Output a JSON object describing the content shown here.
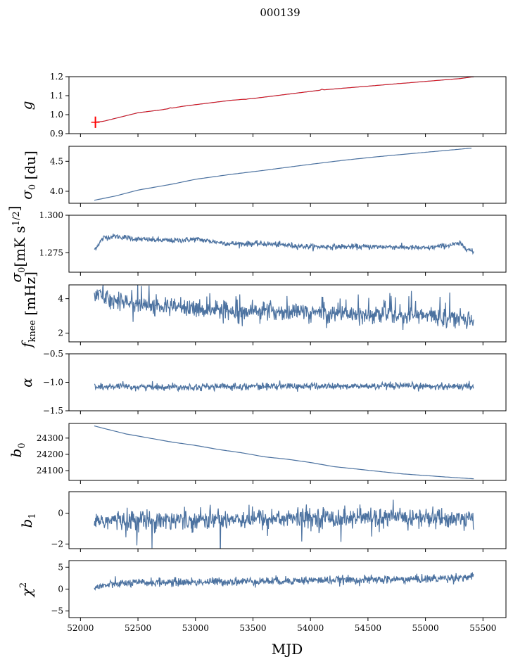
{
  "figure": {
    "title": "000139",
    "xlabel": "MJD"
  },
  "chart_data": {
    "type": "line",
    "title": "000139",
    "x_range": [
      51900,
      55700
    ],
    "shared_x_ticks": [
      "52000",
      "52500",
      "53000",
      "53500",
      "54000",
      "54500",
      "55000",
      "55500"
    ],
    "x_ticks": [
      52000,
      52500,
      53000,
      53500,
      54000,
      54500,
      55000,
      55500
    ],
    "line_color": "#4c72a0",
    "highlight_color": "#ff0000",
    "panels": [
      {
        "id": "g",
        "ylabel": "g",
        "ylim": [
          0.9,
          1.2
        ],
        "yticks": [
          0.9,
          1.0,
          1.1,
          1.2
        ],
        "ytick_labels": [
          "0.9",
          "1.0",
          "1.1",
          "1.2"
        ],
        "series": [
          {
            "x": [
              52120,
              52200,
              52300,
              52400,
              52500,
              52700,
              52900,
              53100,
              53300,
              53500,
              53700,
              53900,
              54100,
              54300,
              54500,
              54700,
              54900,
              55100,
              55300,
              55420
            ],
            "y": [
              0.96,
              0.965,
              0.98,
              0.995,
              1.01,
              1.025,
              1.045,
              1.06,
              1.075,
              1.085,
              1.1,
              1.115,
              1.13,
              1.14,
              1.15,
              1.16,
              1.17,
              1.18,
              1.19,
              1.2
            ]
          }
        ],
        "overlay_red": true
      },
      {
        "id": "sigma0_du",
        "ylabel": "σ0 [du]",
        "ylim": [
          3.8,
          4.75
        ],
        "yticks": [
          4.0,
          4.5
        ],
        "ytick_labels": [
          "4.0",
          "4.5"
        ],
        "series": [
          {
            "x": [
              52120,
              52300,
              52500,
              52800,
              53000,
              53300,
              53600,
              54000,
              54300,
              54600,
              55000,
              55400
            ],
            "y": [
              3.85,
              3.92,
              4.02,
              4.12,
              4.2,
              4.28,
              4.35,
              4.45,
              4.52,
              4.58,
              4.65,
              4.72
            ]
          }
        ]
      },
      {
        "id": "sigma0_mk",
        "ylabel": "σ0[mK s1/2]",
        "ylim": [
          1.262,
          1.3
        ],
        "yticks": [
          1.275,
          1.3
        ],
        "ytick_labels": [
          "1.275",
          "1.300"
        ],
        "series": [
          {
            "x": [
              52120,
              52200,
              52300,
              52500,
              52800,
              53000,
              53300,
              53600,
              54000,
              54300,
              54700,
              55000,
              55300,
              55420
            ],
            "y": [
              1.277,
              1.285,
              1.286,
              1.284,
              1.283,
              1.284,
              1.281,
              1.281,
              1.279,
              1.279,
              1.279,
              1.278,
              1.281,
              1.275
            ]
          }
        ],
        "noise": 0.0015
      },
      {
        "id": "fknee",
        "ylabel": "fknee [mHz]",
        "ylim": [
          1.5,
          4.8
        ],
        "yticks": [
          2,
          4
        ],
        "ytick_labels": [
          "2",
          "4"
        ],
        "series": [
          {
            "x": [
              52120,
              52300,
              52600,
              53000,
              53500,
              54000,
              54500,
              55000,
              55420
            ],
            "y": [
              4.3,
              3.9,
              3.6,
              3.4,
              3.3,
              3.2,
              3.1,
              3.0,
              2.8
            ]
          }
        ],
        "noise": 0.45
      },
      {
        "id": "alpha",
        "ylabel": "α",
        "ylim": [
          -1.5,
          -0.5
        ],
        "yticks": [
          -1.5,
          -1.0,
          -0.5
        ],
        "ytick_labels": [
          "−1.5",
          "−1.0",
          "−0.5"
        ],
        "series": [
          {
            "x": [
              52120,
              52500,
              53000,
              53500,
              54000,
              54500,
              55000,
              55420
            ],
            "y": [
              -1.08,
              -1.08,
              -1.08,
              -1.07,
              -1.07,
              -1.07,
              -1.07,
              -1.07
            ]
          }
        ],
        "noise": 0.05
      },
      {
        "id": "b0",
        "ylabel": "b0",
        "ylim": [
          24040,
          24390
        ],
        "yticks": [
          24100,
          24200,
          24300
        ],
        "ytick_labels": [
          "24100",
          "24200",
          "24300"
        ],
        "series": [
          {
            "x": [
              52120,
              52200,
              52400,
              52600,
              52800,
              53000,
              53200,
              53400,
              53600,
              53800,
              54000,
              54200,
              54400,
              54600,
              54800,
              55000,
              55200,
              55420
            ],
            "y": [
              24375,
              24360,
              24325,
              24300,
              24275,
              24255,
              24230,
              24210,
              24185,
              24170,
              24150,
              24125,
              24110,
              24095,
              24080,
              24070,
              24060,
              24050
            ]
          }
        ],
        "noise": 0
      },
      {
        "id": "b1",
        "ylabel": "b1",
        "ylim": [
          -2.3,
          1.4
        ],
        "yticks": [
          -2,
          0
        ],
        "ytick_labels": [
          "−2",
          "0"
        ],
        "series": [
          {
            "x": [
              52120,
              53000,
              54000,
              55000,
              55420
            ],
            "y": [
              -0.5,
              -0.4,
              -0.3,
              -0.3,
              -0.4
            ]
          }
        ],
        "noise": 0.55
      },
      {
        "id": "chi2",
        "ylabel": "χ2",
        "ylim": [
          -6.5,
          6.5
        ],
        "yticks": [
          -5,
          0,
          5
        ],
        "ytick_labels": [
          "−5",
          "0",
          "5"
        ],
        "series": [
          {
            "x": [
              52120,
              52300,
              52600,
              53000,
              53500,
              54000,
              54500,
              55000,
              55420
            ],
            "y": [
              0.3,
              1.2,
              1.5,
              1.6,
              1.8,
              2.0,
              2.1,
              2.3,
              2.8
            ]
          }
        ],
        "noise": 0.8
      }
    ]
  }
}
